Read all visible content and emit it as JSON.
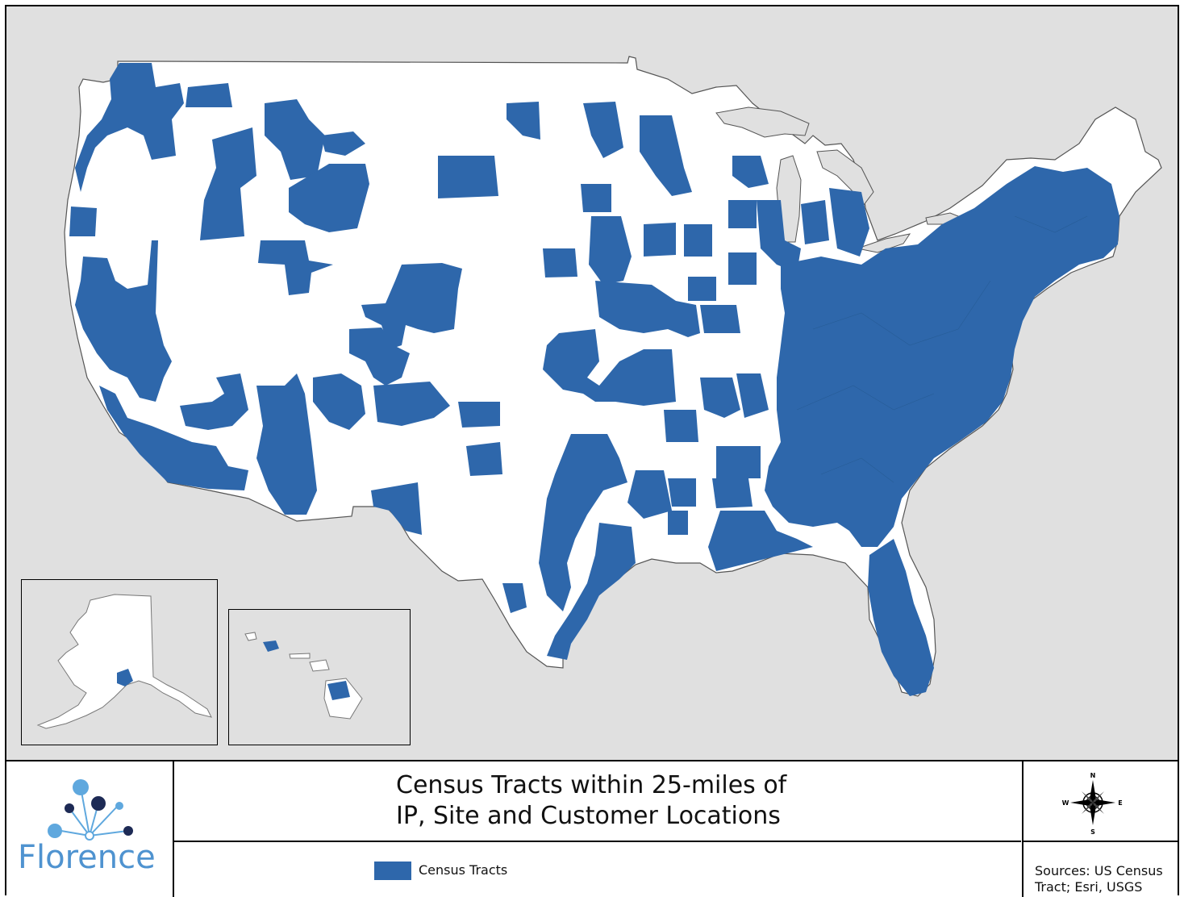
{
  "title": {
    "line1": "Census Tracts within 25-miles of",
    "line2": "IP, Site and Customer Locations"
  },
  "legend": {
    "items": [
      {
        "label": "Census Tracts",
        "color": "#2e67ab"
      }
    ]
  },
  "sources": {
    "text": "Sources: US Census Tract; Esri, USGS"
  },
  "logo": {
    "name": "Florence",
    "icon": "molecule-network-icon",
    "colors": {
      "light": "#5fa8de",
      "dark": "#1d2a55",
      "text": "#4f93d0"
    }
  },
  "compass": {
    "icon": "compass-rose-icon",
    "labels": {
      "north": "N",
      "south": "S",
      "east": "E",
      "west": "W"
    }
  },
  "map": {
    "land_color": "#ffffff",
    "water_color": "#e0e0e0",
    "tract_color": "#2e67ab",
    "insets": [
      "alaska-inset",
      "hawaii-inset"
    ]
  }
}
